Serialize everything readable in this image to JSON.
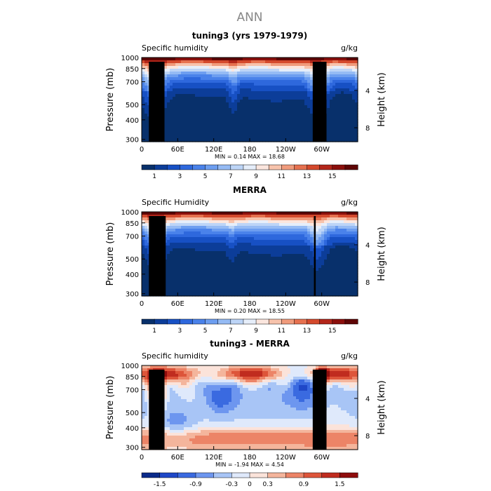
{
  "figure": {
    "title": "ANN"
  },
  "colors": {
    "levels_abs": [
      "#08306b",
      "#0c3d99",
      "#1750c4",
      "#2e68dd",
      "#4a82ea",
      "#6d9ef0",
      "#95bbf4",
      "#bdd5f7",
      "#e6eefa",
      "#fbe6de",
      "#f7c3ac",
      "#f09b7c",
      "#e6714f",
      "#d4492c",
      "#b3261a",
      "#8b0f0c",
      "#5e0505"
    ],
    "levels_diff": [
      "#0a2a8a",
      "#1f48c8",
      "#3a6ae0",
      "#6d96ef",
      "#a8c5f6",
      "#dfe9fb",
      "#fbe3da",
      "#f4b59c",
      "#ec8467",
      "#dd553a",
      "#c02c1f",
      "#8f0d0d"
    ],
    "terrain": "#000000"
  },
  "panels": [
    {
      "id": "tuning3",
      "title": "tuning3 (yrs 1979-1979)",
      "left_label": "Specific humidity",
      "right_label": "g/kg",
      "stats": "MIN =     0.14   MAX =   18.68",
      "colorbar_labels": [
        "1",
        "3",
        "5",
        "7",
        "9",
        "11",
        "13",
        "15"
      ]
    },
    {
      "id": "merra",
      "title": "MERRA",
      "left_label": "Specific Humidity",
      "right_label": "g/kg",
      "stats": "MIN =     0.20   MAX =   18.55",
      "colorbar_labels": [
        "1",
        "3",
        "5",
        "7",
        "9",
        "11",
        "13",
        "15"
      ]
    },
    {
      "id": "diff",
      "title": "tuning3 - MERRA",
      "left_label": "Specific humidity",
      "right_label": "g/kg",
      "stats": "MIN =    -1.94   MAX =    4.54",
      "colorbar_labels": [
        "-1.5",
        "-0.9",
        "-0.3",
        "0",
        "0.3",
        "0.9",
        "1.5"
      ]
    }
  ],
  "axes": {
    "x_ticks": [
      "0",
      "60E",
      "120E",
      "180",
      "120W",
      "60W"
    ],
    "y_label": "Pressure (mb)",
    "y_ticks": [
      "300",
      "400",
      "500",
      "700",
      "850",
      "1000"
    ],
    "y_right_label": "Height (km)",
    "y_right_ticks": [
      "8",
      "4"
    ]
  },
  "chart_data": [
    {
      "type": "heatmap",
      "title": "tuning3 (yrs 1979-1979)",
      "field": "Specific humidity",
      "units": "g/kg",
      "x": [
        0,
        60,
        120,
        180,
        240,
        300,
        360
      ],
      "x_tick_labels": [
        "0",
        "60E",
        "120E",
        "180",
        "120W",
        "60W"
      ],
      "y_pressure_mb": [
        1000,
        850,
        700,
        500,
        400,
        300
      ],
      "ylim": [
        1000,
        300
      ],
      "y_scale": "log",
      "min": 0.14,
      "max": 18.68,
      "contour_levels": [
        1,
        2,
        3,
        4,
        5,
        6,
        7,
        8,
        9,
        10,
        11,
        12,
        13,
        14,
        15,
        16
      ],
      "moist_columns_lon": [
        20,
        150,
        235,
        295
      ],
      "terrain_lon": [
        [
          12,
          38
        ],
        [
          285,
          308
        ]
      ]
    },
    {
      "type": "heatmap",
      "title": "MERRA",
      "field": "Specific Humidity",
      "units": "g/kg",
      "x": [
        0,
        60,
        120,
        180,
        240,
        300,
        360
      ],
      "x_tick_labels": [
        "0",
        "60E",
        "120E",
        "180",
        "120W",
        "60W"
      ],
      "y_pressure_mb": [
        1000,
        850,
        700,
        500,
        400,
        300
      ],
      "ylim": [
        1000,
        300
      ],
      "y_scale": "log",
      "min": 0.2,
      "max": 18.55,
      "contour_levels": [
        1,
        2,
        3,
        4,
        5,
        6,
        7,
        8,
        9,
        10,
        11,
        12,
        13,
        14,
        15,
        16
      ],
      "moist_columns_lon": [
        20,
        150,
        235,
        290
      ],
      "terrain_lon": [
        [
          12,
          40
        ],
        [
          287,
          290
        ]
      ]
    },
    {
      "type": "heatmap",
      "title": "tuning3 - MERRA",
      "field": "Specific humidity",
      "units": "g/kg",
      "x": [
        0,
        60,
        120,
        180,
        240,
        300,
        360
      ],
      "x_tick_labels": [
        "0",
        "60E",
        "120E",
        "180",
        "120W",
        "60W"
      ],
      "y_pressure_mb": [
        1000,
        850,
        700,
        500,
        400,
        300
      ],
      "ylim": [
        1000,
        300
      ],
      "y_scale": "log",
      "min": -1.94,
      "max": 4.54,
      "contour_levels": [
        -1.5,
        -1.2,
        -0.9,
        -0.6,
        -0.3,
        0,
        0.3,
        0.6,
        0.9,
        1.2,
        1.5
      ],
      "terrain_lon": [
        [
          12,
          38
        ],
        [
          285,
          308
        ]
      ]
    }
  ]
}
